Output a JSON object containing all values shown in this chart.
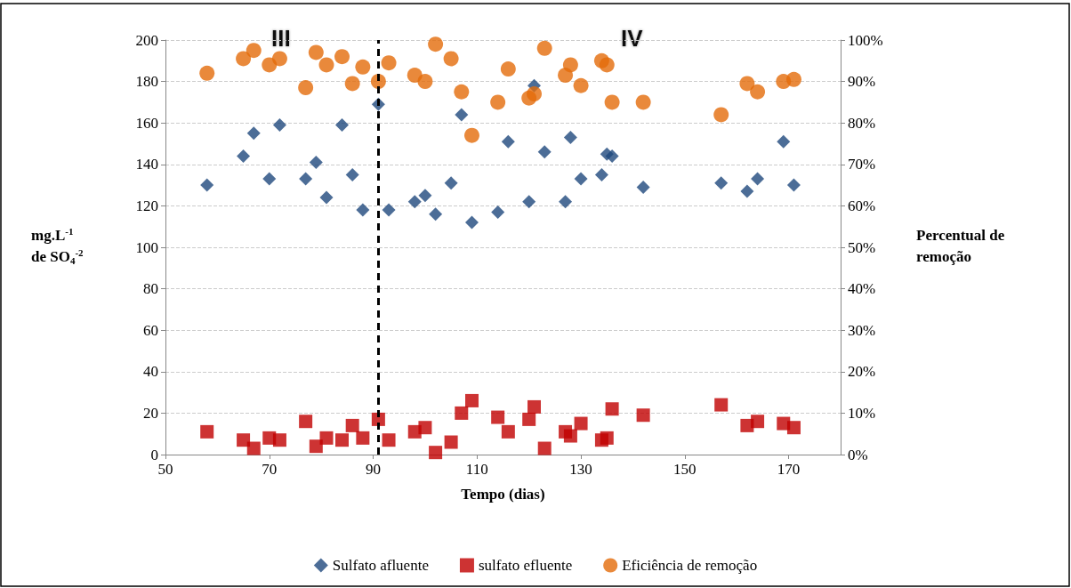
{
  "chart_data": {
    "type": "scatter",
    "xlabel": "Tempo (dias)",
    "ylabel": "mg.L$^{-1}$\nde SO$_{4}$$^{-2}$",
    "y2label": "Percentual de\nremoção",
    "xlim": [
      50,
      180
    ],
    "xticks": [
      50,
      70,
      90,
      110,
      130,
      150,
      170
    ],
    "ylim": [
      0,
      200
    ],
    "yticks": [
      0,
      20,
      40,
      60,
      80,
      100,
      120,
      140,
      160,
      180,
      200
    ],
    "y2lim": [
      0,
      100
    ],
    "y2ticks": [
      {
        "value": 0,
        "label": "0%"
      },
      {
        "value": 10,
        "label": "10%"
      },
      {
        "value": 20,
        "label": "20%"
      },
      {
        "value": 30,
        "label": "30%"
      },
      {
        "value": 40,
        "label": "40%"
      },
      {
        "value": 50,
        "label": "50%"
      },
      {
        "value": 60,
        "label": "60%"
      },
      {
        "value": 70,
        "label": "70%"
      },
      {
        "value": 80,
        "label": "80%"
      },
      {
        "value": 90,
        "label": "90%"
      },
      {
        "value": 100,
        "label": "100%"
      }
    ],
    "x": [
      58,
      65,
      67,
      70,
      72,
      77,
      79,
      81,
      84,
      86,
      88,
      91,
      93,
      98,
      100,
      102,
      105,
      107,
      109,
      114,
      116,
      120,
      121,
      123,
      127,
      128,
      130,
      134,
      135,
      136,
      142,
      157,
      162,
      164,
      169,
      171
    ],
    "series": [
      {
        "name": "Sulfato afluente",
        "color": "#1f497d",
        "marker": "diamond",
        "values": [
          130,
          144,
          155,
          133,
          159,
          133,
          141,
          124,
          159,
          135,
          118,
          169,
          118,
          122,
          125,
          116,
          131,
          164,
          112,
          117,
          151,
          122,
          178,
          146,
          122,
          153,
          133,
          135,
          145,
          144,
          129,
          131,
          127,
          133,
          151,
          130
        ]
      },
      {
        "name": "sulfato efluente",
        "color": "#c00000",
        "marker": "square",
        "values": [
          11,
          7,
          3,
          8,
          7,
          16,
          4,
          8,
          7,
          14,
          8,
          17,
          7,
          11,
          13,
          1,
          6,
          20,
          26,
          18,
          11,
          17,
          23,
          3,
          11,
          9,
          15,
          7,
          8,
          22,
          19,
          24,
          14,
          16,
          15,
          13
        ]
      },
      {
        "name": "Eficiência de remoção",
        "color": "#e46c0a",
        "marker": "circle",
        "axis": "y2",
        "values": [
          92,
          95.5,
          97.5,
          94,
          95.5,
          88.5,
          97,
          94,
          96,
          89.5,
          93.5,
          90,
          94.5,
          91.5,
          90,
          99,
          95.5,
          87.5,
          77,
          85,
          93,
          86,
          87,
          98,
          91.5,
          94,
          89,
          95,
          94,
          85,
          85,
          82,
          89.5,
          87.5,
          90,
          90.5
        ]
      }
    ],
    "ref_lines": [
      {
        "axis": "x",
        "value": 91,
        "color": "#000000",
        "line_style": "dashed"
      }
    ],
    "annotations": [
      "III",
      "IV"
    ],
    "grid": "y",
    "legend": "bottom"
  }
}
